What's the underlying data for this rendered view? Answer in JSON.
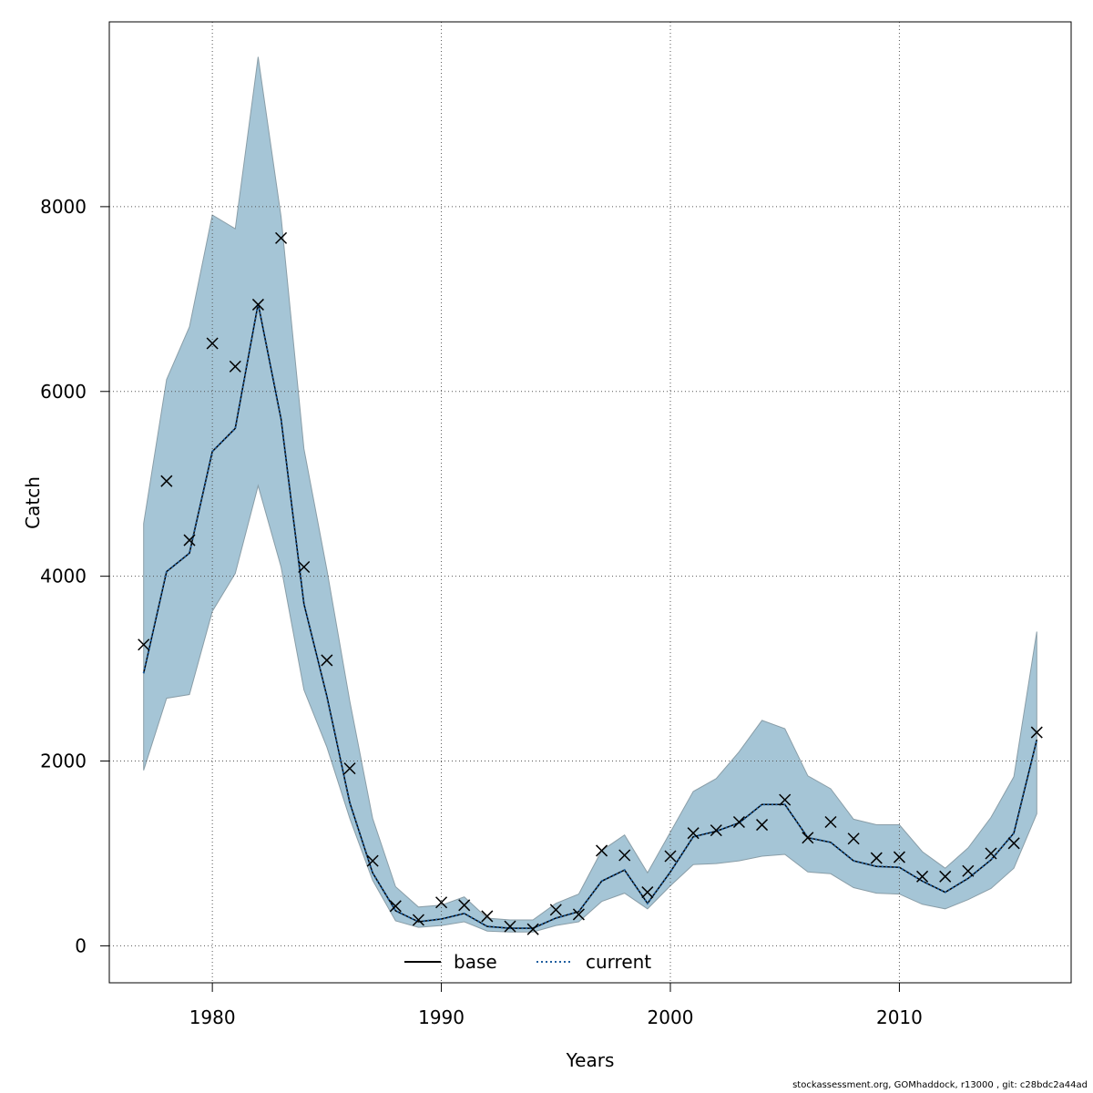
{
  "chart_data": {
    "type": "line",
    "title": "",
    "xlabel": "Years",
    "ylabel": "Catch",
    "xlim": [
      1975.5,
      2017.5
    ],
    "ylim": [
      -400,
      10000
    ],
    "x_ticks": [
      1980,
      1990,
      2000,
      2010
    ],
    "y_ticks": [
      0,
      2000,
      4000,
      6000,
      8000
    ],
    "grid": true,
    "legend_position": "bottom-center",
    "x": [
      1977,
      1978,
      1979,
      1980,
      1981,
      1982,
      1983,
      1984,
      1985,
      1986,
      1987,
      1988,
      1989,
      1990,
      1991,
      1992,
      1993,
      1994,
      1995,
      1996,
      1997,
      1998,
      1999,
      2000,
      2001,
      2002,
      2003,
      2004,
      2005,
      2006,
      2007,
      2008,
      2009,
      2010,
      2011,
      2012,
      2013,
      2014,
      2015,
      2016
    ],
    "series": [
      {
        "name": "base",
        "style": "solid",
        "color": "#000000",
        "values": [
          2950,
          4050,
          4250,
          5350,
          5600,
          6950,
          5700,
          3700,
          2700,
          1550,
          790,
          380,
          260,
          290,
          350,
          210,
          190,
          190,
          300,
          370,
          700,
          820,
          460,
          800,
          1180,
          1240,
          1330,
          1530,
          1530,
          1170,
          1120,
          920,
          860,
          850,
          700,
          580,
          730,
          930,
          1220,
          2230
        ]
      },
      {
        "name": "current",
        "style": "dotted",
        "color": "#1f5f9f",
        "values": [
          2950,
          4050,
          4250,
          5350,
          5600,
          6950,
          5700,
          3700,
          2700,
          1550,
          790,
          380,
          260,
          290,
          350,
          210,
          190,
          190,
          300,
          370,
          700,
          820,
          460,
          800,
          1180,
          1240,
          1330,
          1530,
          1530,
          1170,
          1120,
          920,
          860,
          850,
          700,
          580,
          730,
          930,
          1220,
          2230
        ]
      }
    ],
    "confidence_band": {
      "color": "#a5c5d6",
      "lower": [
        1900,
        2680,
        2720,
        3620,
        4030,
        4980,
        4100,
        2770,
        2150,
        1380,
        710,
        270,
        200,
        220,
        260,
        160,
        150,
        150,
        220,
        260,
        480,
        570,
        400,
        650,
        880,
        890,
        920,
        970,
        990,
        800,
        780,
        630,
        570,
        560,
        450,
        400,
        500,
        620,
        840,
        1430
      ],
      "upper": [
        4570,
        6130,
        6700,
        7910,
        7760,
        9620,
        7890,
        5380,
        4070,
        2650,
        1380,
        640,
        420,
        440,
        530,
        300,
        280,
        280,
        460,
        560,
        1030,
        1200,
        790,
        1230,
        1670,
        1810,
        2100,
        2440,
        2350,
        1840,
        1700,
        1370,
        1310,
        1310,
        1020,
        840,
        1060,
        1390,
        1830,
        3400
      ]
    },
    "observed": {
      "marker": "x",
      "values": [
        3260,
        5030,
        4390,
        6520,
        6270,
        6940,
        7660,
        4100,
        3090,
        1920,
        920,
        430,
        280,
        470,
        440,
        320,
        210,
        180,
        390,
        340,
        1030,
        980,
        580,
        970,
        1220,
        1250,
        1340,
        1310,
        1580,
        1170,
        1340,
        1160,
        950,
        960,
        750,
        750,
        810,
        1000,
        1110,
        2310
      ]
    }
  },
  "footer": "stockassessment.org, GOMhaddock, r13000 , git: c28bdc2a44ad"
}
